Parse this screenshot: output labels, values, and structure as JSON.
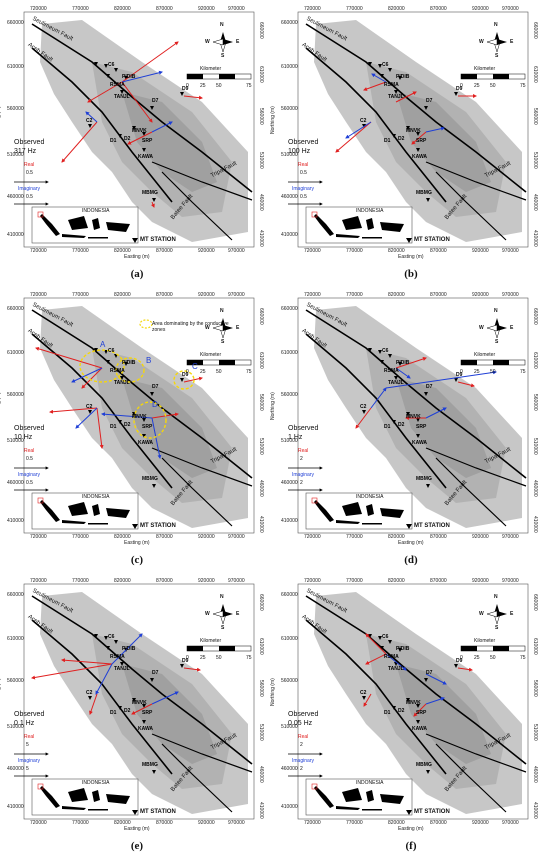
{
  "axes": {
    "easting_label": "Easting (m)",
    "northing_label": "Northing (m)",
    "easting_ticks": [
      "720000",
      "770000",
      "820000",
      "870000",
      "920000",
      "970000"
    ],
    "northing_ticks": [
      "660000",
      "610000",
      "560000",
      "510000",
      "460000",
      "410000"
    ]
  },
  "faults": {
    "seulimeum": "Seulimeum Fault",
    "aceh": "Aceh Fault",
    "tripa": "Tripa Fault",
    "batee": "Batee Fault"
  },
  "stations": {
    "pidib": "PIDIB",
    "rsma": "RSMA",
    "tanjl": "TANJL",
    "d9": "D9",
    "d7": "D7",
    "c6": "C6",
    "c2": "C2",
    "d1": "D1",
    "d2": "D2",
    "mnvk": "MNVK",
    "srp": "SRP",
    "kawa": "KAWA",
    "mbmg": "MBMG"
  },
  "compass": {
    "n": "N",
    "s": "S",
    "e": "E",
    "w": "W"
  },
  "scale": {
    "title": "Kilometer",
    "labels": [
      "0",
      "25",
      "50",
      "75"
    ]
  },
  "legend": {
    "real": "Real",
    "imaginary": "Imaginary",
    "inset_title": "INDONESIA",
    "mt_station": "MT STATION",
    "conductive_zones": "Area dominating by the conductive zones"
  },
  "colors": {
    "real_arrow": "#e02020",
    "imaginary_arrow": "#1f3fd6",
    "zone": "#f5d70a"
  },
  "zones": [
    "A",
    "B",
    "C",
    "D"
  ],
  "panels": [
    {
      "caption": "(a)",
      "observed": "Observed",
      "freq": "317 Hz",
      "real_scale": "0.5",
      "imag_scale": "0.5"
    },
    {
      "caption": "(b)",
      "observed": "Observed",
      "freq": "100 Hz",
      "real_scale": "0.5",
      "imag_scale": "0.5"
    },
    {
      "caption": "(c)",
      "observed": "Observed",
      "freq": "10 Hz",
      "real_scale": "0.5",
      "imag_scale": "0.5"
    },
    {
      "caption": "(d)",
      "observed": "Observed",
      "freq": "1 Hz",
      "real_scale": "2",
      "imag_scale": "2"
    },
    {
      "caption": "(e)",
      "observed": "Observed",
      "freq": "0.1 Hz",
      "real_scale": "5",
      "imag_scale": "5"
    },
    {
      "caption": "(f)",
      "observed": "Observed",
      "freq": "0.05 Hz",
      "real_scale": "2",
      "imag_scale": "2"
    }
  ]
}
